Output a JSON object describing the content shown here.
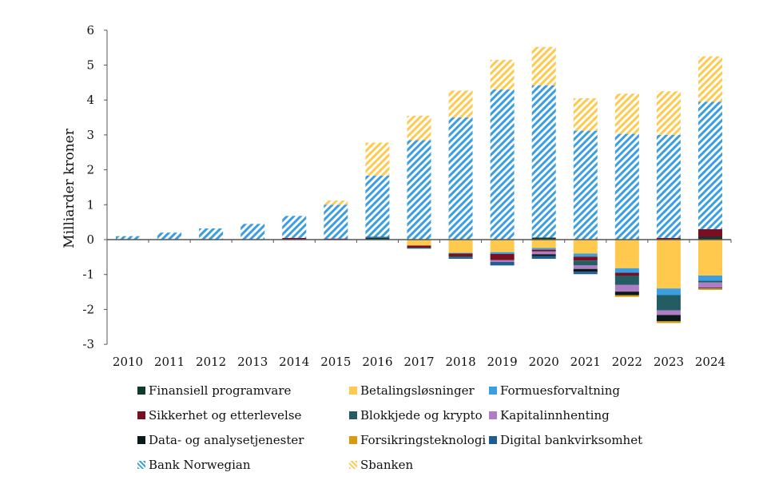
{
  "chart_data": {
    "type": "bar",
    "stacked": true,
    "ylabel": "Milliarder kroner",
    "ylim": [
      -3,
      6
    ],
    "yticks": [
      -3,
      -2,
      -1,
      0,
      1,
      2,
      3,
      4,
      5,
      6
    ],
    "categories": [
      "2010",
      "2011",
      "2012",
      "2013",
      "2014",
      "2015",
      "2016",
      "2017",
      "2018",
      "2019",
      "2020",
      "2021",
      "2022",
      "2023",
      "2024"
    ],
    "legend_position": "bottom",
    "grid": false,
    "series": [
      {
        "name": "Finansiell programvare",
        "color": "#0f3a2e",
        "pattern": "solid",
        "values": [
          0,
          0,
          0,
          0,
          0,
          0,
          0.05,
          0,
          0,
          0,
          0.06,
          0,
          0,
          0,
          0.08
        ]
      },
      {
        "name": "Betalingsløsninger",
        "color": "#ffc94d",
        "pattern": "solid",
        "values": [
          0,
          0,
          0,
          0,
          0,
          0,
          0,
          -0.17,
          -0.38,
          -0.36,
          -0.24,
          -0.4,
          -0.82,
          -1.4,
          -1.03
        ]
      },
      {
        "name": "Formuesforvaltning",
        "color": "#3a9ee0",
        "pattern": "solid",
        "values": [
          0,
          0,
          0,
          0,
          0,
          0,
          0,
          0,
          -0.02,
          -0.05,
          -0.05,
          -0.09,
          -0.13,
          -0.19,
          -0.15
        ]
      },
      {
        "name": "Sikkerhet og etterlevelse",
        "color": "#7a0f22",
        "pattern": "solid",
        "values": [
          0,
          0,
          0,
          0,
          0.05,
          0.03,
          0,
          -0.06,
          -0.08,
          -0.18,
          -0.05,
          -0.11,
          -0.08,
          0.05,
          0.22
        ]
      },
      {
        "name": "Blokkjede og krypto",
        "color": "#245c64",
        "pattern": "solid",
        "values": [
          0,
          0,
          0,
          0,
          0,
          0,
          0,
          0,
          -0.03,
          0,
          0,
          -0.14,
          -0.27,
          -0.44,
          -0.05
        ]
      },
      {
        "name": "Kapitalinnhenting",
        "color": "#b07cc6",
        "pattern": "solid",
        "values": [
          0,
          0,
          0,
          0,
          0,
          0,
          0,
          0,
          0,
          -0.05,
          -0.08,
          -0.1,
          -0.19,
          -0.13,
          -0.15
        ]
      },
      {
        "name": "Data- og analysetjenester",
        "color": "#0b1a1a",
        "pattern": "solid",
        "values": [
          0,
          0,
          0,
          0,
          0,
          0,
          0,
          0,
          0,
          0,
          -0.05,
          -0.08,
          -0.1,
          -0.18,
          -0.02
        ]
      },
      {
        "name": "Forsikringsteknologi",
        "color": "#d99a10",
        "pattern": "solid",
        "values": [
          0,
          0,
          0,
          0,
          0,
          0,
          0,
          0,
          0,
          0,
          0,
          0,
          -0.05,
          -0.05,
          -0.04
        ]
      },
      {
        "name": "Digital bankvirksomhet",
        "color": "#1f5f8f",
        "pattern": "solid",
        "values": [
          0,
          0,
          0,
          0,
          0,
          0,
          0.03,
          -0.03,
          -0.04,
          -0.1,
          -0.08,
          -0.07,
          0,
          0,
          0
        ]
      },
      {
        "name": "Bank Norwegian",
        "color": "#3a9ee0",
        "pattern": "hatch",
        "values": [
          0.1,
          0.2,
          0.32,
          0.45,
          0.63,
          0.97,
          1.75,
          2.85,
          3.5,
          4.3,
          4.36,
          3.12,
          3.03,
          2.95,
          3.65
        ]
      },
      {
        "name": "Sbanken",
        "color": "#ffc94d",
        "pattern": "hatch",
        "values": [
          0,
          0,
          0,
          0,
          0,
          0.12,
          0.95,
          0.7,
          0.77,
          0.85,
          1.1,
          0.93,
          1.15,
          1.25,
          1.3
        ]
      }
    ]
  }
}
